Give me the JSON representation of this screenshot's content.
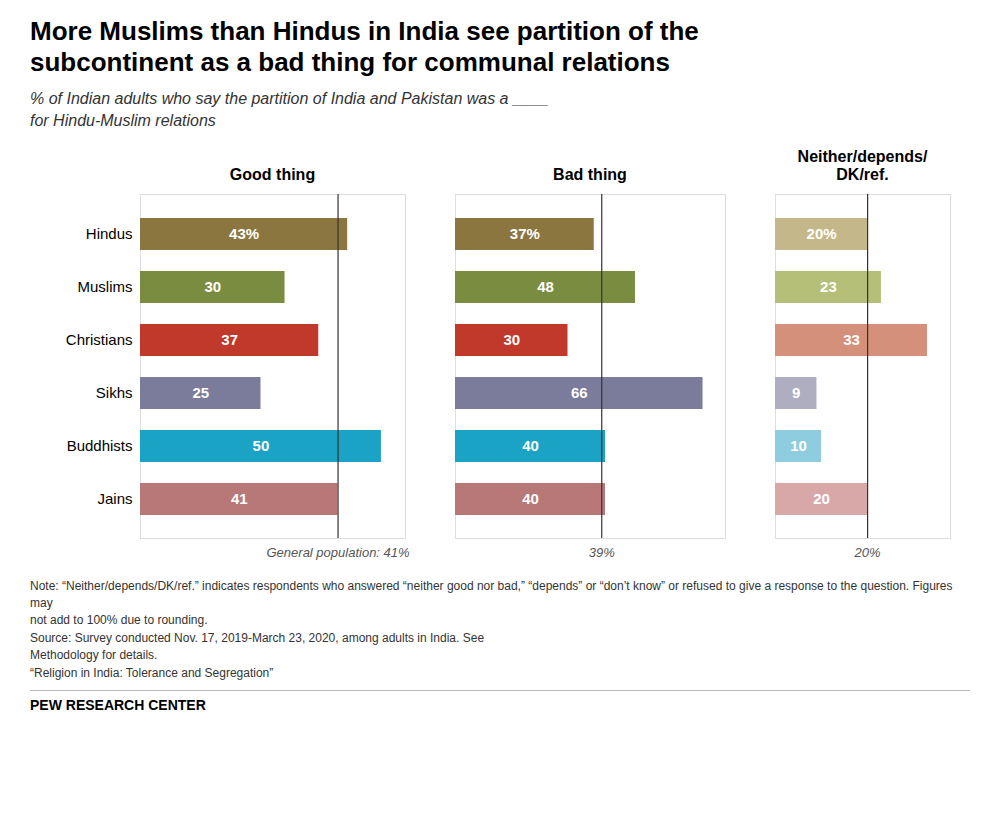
{
  "chart_data": [
    {
      "type": "bar",
      "orientation": "horizontal",
      "title": "More Muslims than Hindus in India see partition of the\nsubcontinent as a bad thing for communal relations",
      "subtitle": "% of Indian adults who say the partition of India and Pakistan was a ____\nfor Hindu-Muslim relations",
      "note": "Note: “Neither/depends/DK/ref.” indicates respondents who answered “neither good nor bad,” “depends” or “don’t know” or refused to give a response to the question. Figures may\nnot add to 100% due to rounding.\nSource: Survey conducted Nov. 17, 2019-March 23, 2020, among adults in India. See\nMethodology for details.\n“Religion in India: Tolerance and Segregation”",
      "source": "PEW RESEARCH CENTER",
      "xlabel": "Good thing",
      "categories": [
        "Hindus",
        "Muslims",
        "Christians",
        "Sikhs",
        "Buddhists",
        "Jains"
      ],
      "values": [
        43,
        30,
        37,
        25,
        50,
        41
      ],
      "value_labels": [
        "43%",
        "30",
        "37",
        "25",
        "50",
        "41"
      ],
      "colors": [
        "#8B7640",
        "#7A8C3F",
        "#C0392B",
        "#7B7B9B",
        "#1BA3C6",
        "#B87878"
      ],
      "xlim": [
        0,
        55
      ],
      "data_labels": true,
      "tick_labels": "y",
      "annotations": [
        {
          "value": 41,
          "label": "General population: 41%"
        }
      ]
    },
    {
      "type": "bar",
      "orientation": "horizontal",
      "xlabel": "Bad thing",
      "categories": [
        "Hindus",
        "Muslims",
        "Christians",
        "Sikhs",
        "Buddhists",
        "Jains"
      ],
      "values": [
        37,
        48,
        30,
        66,
        40,
        40
      ],
      "value_labels": [
        "37%",
        "48",
        "30",
        "66",
        "40",
        "40"
      ],
      "colors": [
        "#8B7640",
        "#7A8C3F",
        "#C0392B",
        "#7B7B9B",
        "#1BA3C6",
        "#B87878"
      ],
      "xlim": [
        0,
        72
      ],
      "data_labels": true,
      "tick_labels": false,
      "annotations": [
        {
          "value": 39,
          "label": "39%"
        }
      ]
    },
    {
      "type": "bar",
      "orientation": "horizontal",
      "xlabel": "Neither/depends/\nDK/ref.",
      "categories": [
        "Hindus",
        "Muslims",
        "Christians",
        "Sikhs",
        "Buddhists",
        "Jains"
      ],
      "values": [
        20,
        23,
        33,
        9,
        10,
        20
      ],
      "value_labels": [
        "20%",
        "23",
        "33",
        "9",
        "10",
        "20"
      ],
      "colors": [
        "#C4B88A",
        "#B5BF78",
        "#D4907A",
        "#AEAEC0",
        "#8ECDE0",
        "#D8A8A8"
      ],
      "xlim": [
        0,
        38
      ],
      "data_labels": true,
      "tick_labels": false,
      "annotations": [
        {
          "value": 20,
          "label": "20%"
        }
      ]
    }
  ]
}
